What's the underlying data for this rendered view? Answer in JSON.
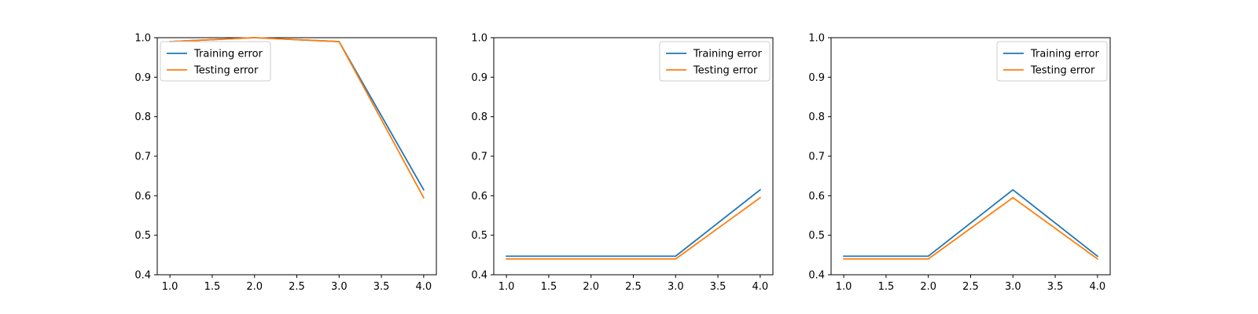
{
  "chart_data": [
    {
      "type": "line",
      "x": [
        1.0,
        2.0,
        3.0,
        4.0
      ],
      "series": [
        {
          "name": "Training error",
          "values": [
            0.99,
            1.0,
            0.99,
            0.615
          ],
          "color": "#1f77b4"
        },
        {
          "name": "Testing error",
          "values": [
            0.99,
            1.0,
            0.99,
            0.595
          ],
          "color": "#ff7f0e"
        }
      ],
      "xlim": [
        0.85,
        4.15
      ],
      "ylim": [
        0.4,
        1.0
      ],
      "xticks": [
        "1.0",
        "1.5",
        "2.0",
        "2.5",
        "3.0",
        "3.5",
        "4.0"
      ],
      "yticks": [
        "0.4",
        "0.5",
        "0.6",
        "0.7",
        "0.8",
        "0.9",
        "1.0"
      ],
      "legend": "upper left",
      "grid": false
    },
    {
      "type": "line",
      "x": [
        1.0,
        2.0,
        3.0,
        4.0
      ],
      "series": [
        {
          "name": "Training error",
          "values": [
            0.447,
            0.447,
            0.447,
            0.615
          ],
          "color": "#1f77b4"
        },
        {
          "name": "Testing error",
          "values": [
            0.44,
            0.44,
            0.44,
            0.595
          ],
          "color": "#ff7f0e"
        }
      ],
      "xlim": [
        0.85,
        4.15
      ],
      "ylim": [
        0.4,
        1.0
      ],
      "xticks": [
        "1.0",
        "1.5",
        "2.0",
        "2.5",
        "3.0",
        "3.5",
        "4.0"
      ],
      "yticks": [
        "0.4",
        "0.5",
        "0.6",
        "0.7",
        "0.8",
        "0.9",
        "1.0"
      ],
      "legend": "upper right",
      "grid": false
    },
    {
      "type": "line",
      "x": [
        1.0,
        2.0,
        3.0,
        4.0
      ],
      "series": [
        {
          "name": "Training error",
          "values": [
            0.447,
            0.447,
            0.615,
            0.447
          ],
          "color": "#1f77b4"
        },
        {
          "name": "Testing error",
          "values": [
            0.44,
            0.44,
            0.595,
            0.44
          ],
          "color": "#ff7f0e"
        }
      ],
      "xlim": [
        0.85,
        4.15
      ],
      "ylim": [
        0.4,
        1.0
      ],
      "xticks": [
        "1.0",
        "1.5",
        "2.0",
        "2.5",
        "3.0",
        "3.5",
        "4.0"
      ],
      "yticks": [
        "0.4",
        "0.5",
        "0.6",
        "0.7",
        "0.8",
        "0.9",
        "1.0"
      ],
      "legend": "upper right",
      "grid": false
    }
  ]
}
